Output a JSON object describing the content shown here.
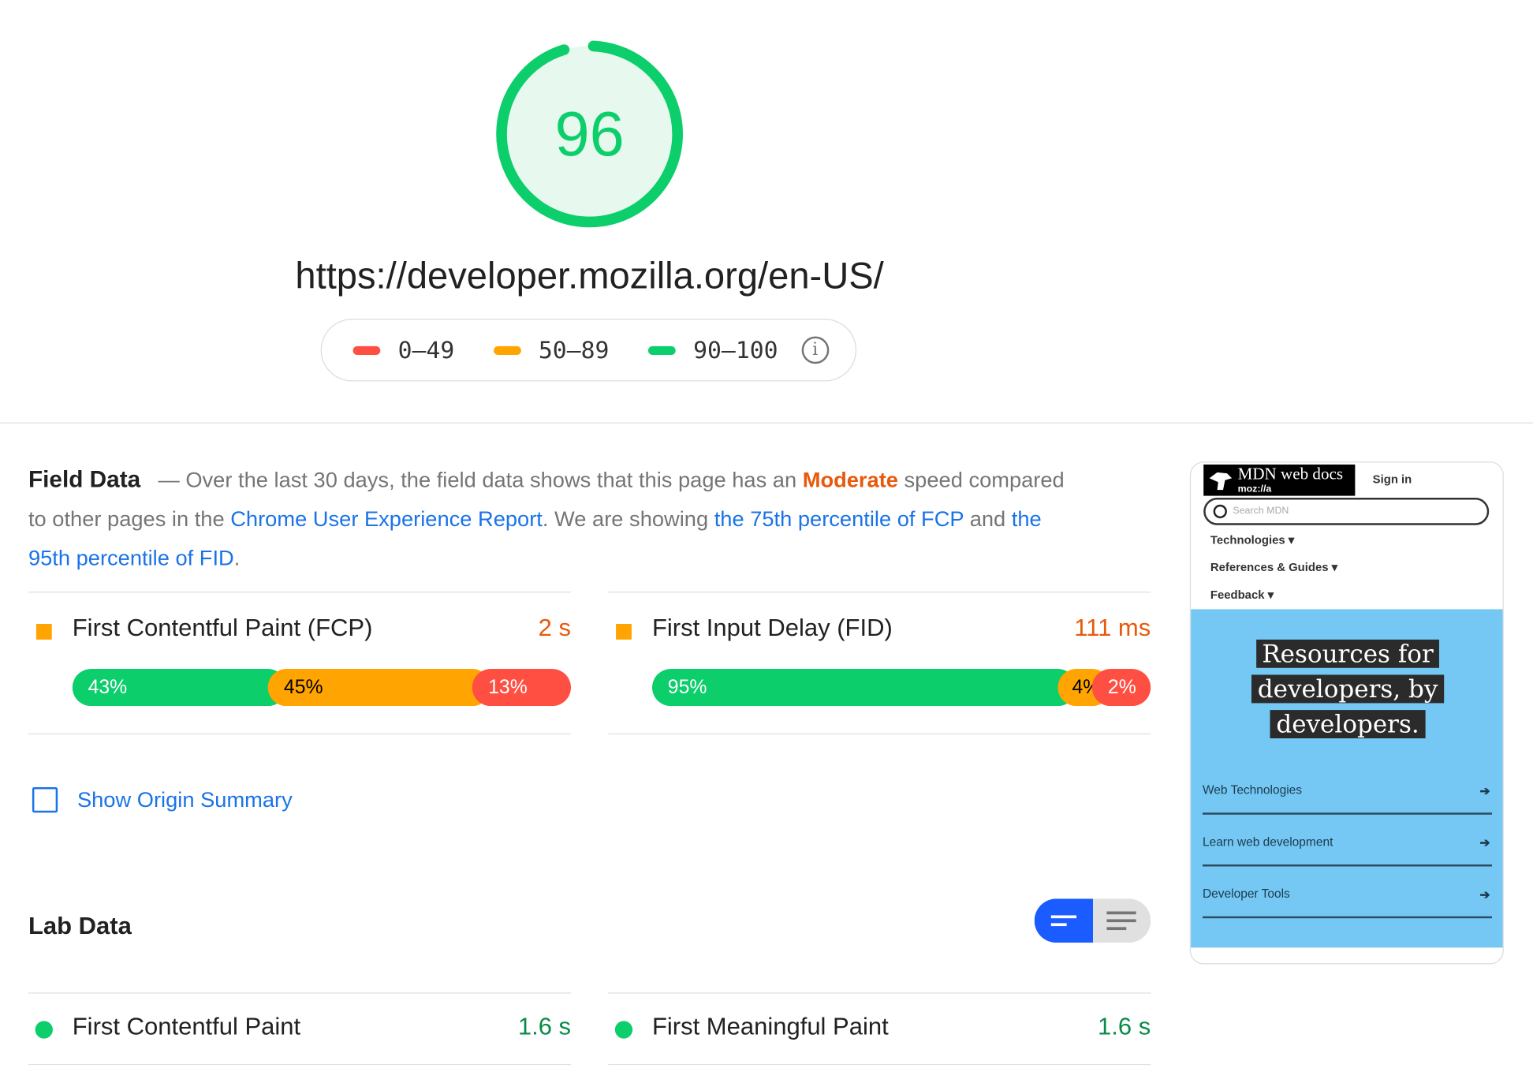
{
  "score": {
    "value": "96",
    "percent": 96,
    "color": "#0cce6b",
    "fill": "#e7f9ef"
  },
  "url": "https://developer.mozilla.org/en-US/",
  "legend": [
    {
      "label": "0–49",
      "color": "#ff4e42"
    },
    {
      "label": "50–89",
      "color": "#ffa400"
    },
    {
      "label": "90–100",
      "color": "#0cce6b"
    }
  ],
  "field": {
    "title": "Field Data",
    "t1": "— Over the last 30 days, the field data shows that this page has an ",
    "rating": "Moderate",
    "t2": " speed compared to other pages in the ",
    "link1": "Chrome User Experience Report",
    "t3": ". We are showing ",
    "link2": "the 75th percentile of FCP",
    "t4": " and ",
    "link3": "the 95th percentile of FID",
    "t5": "."
  },
  "metrics": [
    {
      "title": "First Contentful Paint (FCP)",
      "value": "2 s",
      "dist": [
        {
          "label": "43%",
          "pct": 43
        },
        {
          "label": "45%",
          "pct": 45
        },
        {
          "label": "13%",
          "pct": 13
        }
      ]
    },
    {
      "title": "First Input Delay (FID)",
      "value": "111 ms",
      "dist": [
        {
          "label": "95%",
          "pct": 95
        },
        {
          "label": "4%",
          "pct": 4
        },
        {
          "label": "2%",
          "pct": 2
        }
      ]
    }
  ],
  "origin_summary": {
    "label": "Show Origin Summary",
    "checked": false
  },
  "lab": {
    "title": "Lab Data",
    "rows": [
      {
        "title": "First Contentful Paint",
        "value": "1.6 s"
      },
      {
        "title": "First Meaningful Paint",
        "value": "1.6 s"
      }
    ]
  },
  "screenshot": {
    "brand": "MDN web docs",
    "moz": "moz://a",
    "sign_in": "Sign in",
    "search_placeholder": "Search MDN",
    "nav": [
      "Technologies ▾",
      "References & Guides ▾",
      "Feedback ▾"
    ],
    "hero": [
      "Resources for",
      "developers, by",
      "developers."
    ],
    "links": [
      "Web Technologies",
      "Learn web development",
      "Developer Tools"
    ]
  }
}
